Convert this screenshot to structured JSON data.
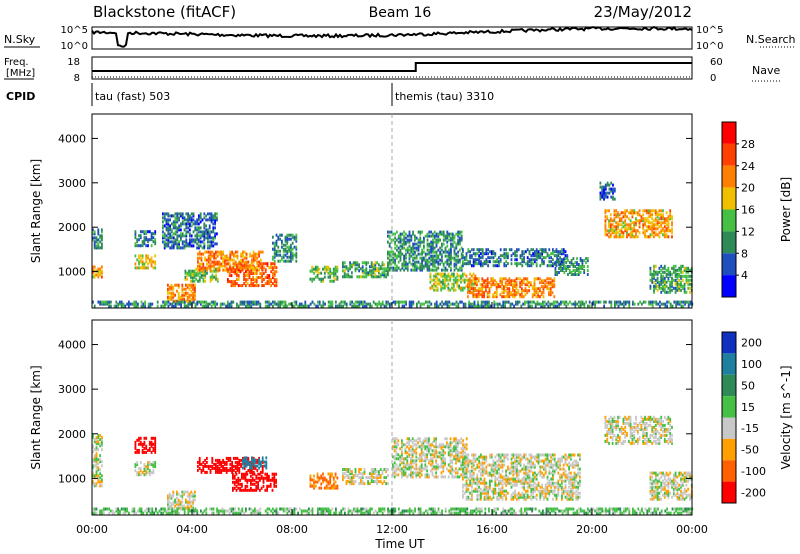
{
  "header": {
    "station": "Blackstone (fitACF)",
    "beam": "Beam 16",
    "date": "23/May/2012"
  },
  "top_panels": {
    "nsky": {
      "label": "N.Sky",
      "ticks": [
        "10^5",
        "10^0"
      ]
    },
    "nsearch": {
      "label": "N.Search",
      "ticks": [
        "10^5",
        "10^0"
      ]
    },
    "freq": {
      "label_line1": "Freq.",
      "label_line2": "[MHz]",
      "ticks": [
        "18",
        "8"
      ]
    },
    "nave": {
      "label": "Nave",
      "ticks": [
        "60",
        "0"
      ]
    },
    "cpid": {
      "label": "CPID",
      "segments": [
        {
          "label": "tau (fast) 503",
          "start_hour": 0
        },
        {
          "label": "themis (tau) 3310",
          "start_hour": 12.0
        }
      ]
    }
  },
  "chart_data": [
    {
      "type": "heatmap",
      "panel": "power",
      "xlabel": "",
      "ylabel": "Slant Range [km]",
      "x_range_hours": [
        0,
        24
      ],
      "ylim": [
        180,
        4550
      ],
      "y_ticks": [
        1000,
        2000,
        3000,
        4000
      ],
      "colorbar": {
        "label": "Power [dB]",
        "ticks": [
          "4",
          "8",
          "12",
          "16",
          "20",
          "24",
          "28"
        ],
        "range": [
          0,
          30
        ],
        "colors": [
          "#0000ff",
          "#1f4fbf",
          "#2e8b57",
          "#45c045",
          "#f0c000",
          "#ff8000",
          "#ff4000",
          "#ff0000"
        ]
      },
      "regions": [
        {
          "t": [
            0.0,
            0.4
          ],
          "r": [
            1500,
            1950
          ],
          "v": 10
        },
        {
          "t": [
            0.0,
            0.4
          ],
          "r": [
            800,
            1100
          ],
          "v": 20
        },
        {
          "t": [
            1.7,
            2.5
          ],
          "r": [
            1050,
            1350
          ],
          "v": 18
        },
        {
          "t": [
            1.7,
            2.5
          ],
          "r": [
            1550,
            1900
          ],
          "v": 8
        },
        {
          "t": [
            3.0,
            4.1
          ],
          "r": [
            300,
            700
          ],
          "v": 22
        },
        {
          "t": [
            3.7,
            5.0
          ],
          "r": [
            750,
            1050
          ],
          "v": 14
        },
        {
          "t": [
            4.2,
            6.8
          ],
          "r": [
            1000,
            1450
          ],
          "v": 22
        },
        {
          "t": [
            5.4,
            7.4
          ],
          "r": [
            650,
            1150
          ],
          "v": 24
        },
        {
          "t": [
            2.8,
            5.0
          ],
          "r": [
            1500,
            2300
          ],
          "v": 8
        },
        {
          "t": [
            7.2,
            8.2
          ],
          "r": [
            1200,
            1800
          ],
          "v": 10
        },
        {
          "t": [
            8.7,
            9.8
          ],
          "r": [
            750,
            1100
          ],
          "v": 14
        },
        {
          "t": [
            10.0,
            11.8
          ],
          "r": [
            850,
            1200
          ],
          "v": 12
        },
        {
          "t": [
            11.8,
            14.8
          ],
          "r": [
            1000,
            1900
          ],
          "v": 10
        },
        {
          "t": [
            13.5,
            15.3
          ],
          "r": [
            550,
            950
          ],
          "v": 16
        },
        {
          "t": [
            14.8,
            19.0
          ],
          "r": [
            1100,
            1500
          ],
          "v": 8
        },
        {
          "t": [
            15.0,
            18.5
          ],
          "r": [
            400,
            850
          ],
          "v": 22
        },
        {
          "t": [
            18.5,
            19.8
          ],
          "r": [
            900,
            1300
          ],
          "v": 10
        },
        {
          "t": [
            20.3,
            20.9
          ],
          "r": [
            2600,
            3000
          ],
          "v": 6
        },
        {
          "t": [
            20.5,
            23.2
          ],
          "r": [
            1750,
            2350
          ],
          "v": 20
        },
        {
          "t": [
            22.3,
            24.0
          ],
          "r": [
            500,
            1100
          ],
          "v": 12
        },
        {
          "t": [
            0.0,
            24.0
          ],
          "r": [
            190,
            320
          ],
          "v": 10
        }
      ]
    },
    {
      "type": "heatmap",
      "panel": "velocity",
      "xlabel": "Time UT",
      "ylabel": "Slant Range [km]",
      "x_range_hours": [
        0,
        24
      ],
      "x_tick_labels": [
        "00:00",
        "04:00",
        "08:00",
        "12:00",
        "16:00",
        "20:00",
        "00:00"
      ],
      "ylim": [
        180,
        4550
      ],
      "y_ticks": [
        1000,
        2000,
        3000,
        4000
      ],
      "colorbar": {
        "label": "Velocity [m s^-1]",
        "ticks": [
          "200",
          "100",
          "50",
          "15",
          "-15",
          "-50",
          "-100",
          "-200"
        ],
        "colors": [
          "#1030c0",
          "#1f7f9f",
          "#2e8b57",
          "#45c045",
          "#c8c8c8",
          "#ffa000",
          "#ff6000",
          "#ff0000"
        ]
      },
      "regions": [
        {
          "t": [
            0.0,
            0.4
          ],
          "r": [
            800,
            1950
          ],
          "v": 0
        },
        {
          "t": [
            1.7,
            2.5
          ],
          "r": [
            1550,
            1900
          ],
          "v": -250
        },
        {
          "t": [
            1.7,
            2.5
          ],
          "r": [
            1050,
            1350
          ],
          "v": 0
        },
        {
          "t": [
            3.0,
            4.1
          ],
          "r": [
            300,
            700
          ],
          "v": 0
        },
        {
          "t": [
            4.2,
            6.8
          ],
          "r": [
            1100,
            1450
          ],
          "v": -250
        },
        {
          "t": [
            6.0,
            7.0
          ],
          "r": [
            1200,
            1450
          ],
          "v": 150
        },
        {
          "t": [
            5.6,
            7.4
          ],
          "r": [
            700,
            1100
          ],
          "v": -150
        },
        {
          "t": [
            8.7,
            9.8
          ],
          "r": [
            750,
            1100
          ],
          "v": -60
        },
        {
          "t": [
            10.0,
            11.8
          ],
          "r": [
            850,
            1200
          ],
          "v": 0
        },
        {
          "t": [
            12.0,
            15.0
          ],
          "r": [
            1000,
            1900
          ],
          "v": 0
        },
        {
          "t": [
            14.8,
            19.5
          ],
          "r": [
            500,
            1500
          ],
          "v": 0
        },
        {
          "t": [
            20.5,
            23.2
          ],
          "r": [
            1750,
            2350
          ],
          "v": 0
        },
        {
          "t": [
            22.3,
            24.0
          ],
          "r": [
            500,
            1100
          ],
          "v": 0
        },
        {
          "t": [
            0.0,
            24.0
          ],
          "r": [
            190,
            320
          ],
          "v": 30
        }
      ]
    }
  ]
}
